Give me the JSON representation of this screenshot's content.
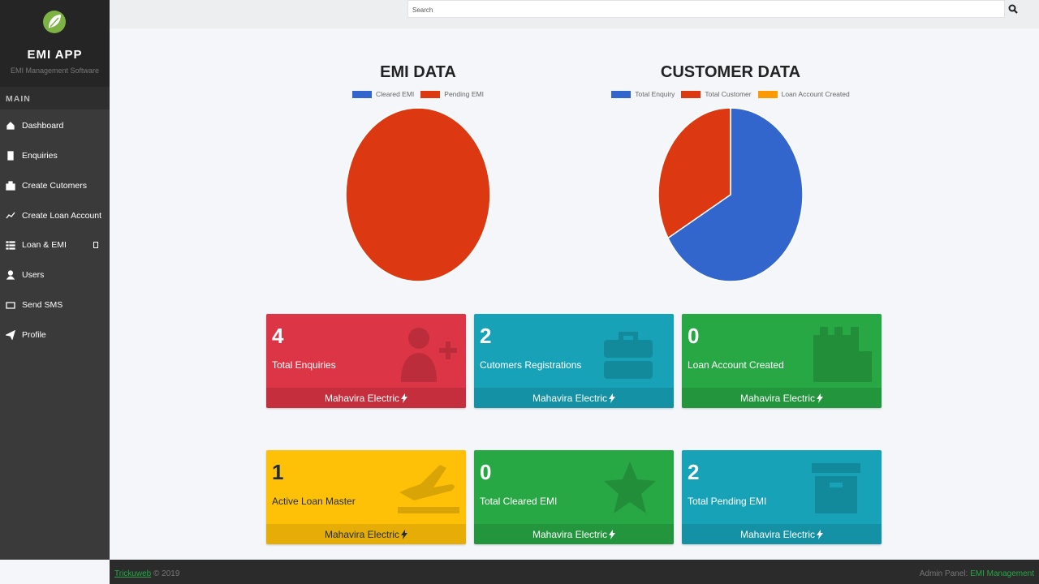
{
  "sidebar": {
    "brand": "EMI APP",
    "tagline": "EMI Management Software",
    "section": "MAIN",
    "nav": [
      "Dashboard",
      "Enquiries",
      "Create Cutomers",
      "Create Loan Account",
      "Loan & EMI",
      "Users",
      "Send SMS",
      "Profile"
    ]
  },
  "search": {
    "placeholder": "Search"
  },
  "chart_data": [
    {
      "type": "pie",
      "title": "EMI DATA",
      "categories": [
        "Cleared EMI",
        "Pending EMI"
      ],
      "values": [
        0,
        2
      ],
      "colors": [
        "#3366cc",
        "#dc3912"
      ]
    },
    {
      "type": "pie",
      "title": "CUSTOMER DATA",
      "categories": [
        "Total Enquiry",
        "Total Customer",
        "Loan Account Created"
      ],
      "values": [
        4,
        2,
        0
      ],
      "colors": [
        "#3366cc",
        "#dc3912",
        "#ff9900"
      ]
    }
  ],
  "cards": [
    {
      "value": 4,
      "label": "Total Enquiries",
      "footer": "Mahavira Electric",
      "color": "#dc3545"
    },
    {
      "value": 2,
      "label": "Cutomers Registrations",
      "footer": "Mahavira Electric",
      "color": "#17a2b8"
    },
    {
      "value": 0,
      "label": "Loan Account Created",
      "footer": "Mahavira Electric",
      "color": "#28a745"
    },
    {
      "value": 1,
      "label": "Active Loan Master",
      "footer": "Mahavira Electric",
      "color": "#ffc107"
    },
    {
      "value": 0,
      "label": "Total Cleared EMI",
      "footer": "Mahavira Electric",
      "color": "#28a745"
    },
    {
      "value": 2,
      "label": "Total Pending EMI",
      "footer": "Mahavira Electric",
      "color": "#17a2b8"
    }
  ],
  "footer": {
    "link": "Trickuweb",
    "copyright": "© 2019",
    "panel_label": "Admin Panel:",
    "panel_name": "EMI Management"
  }
}
